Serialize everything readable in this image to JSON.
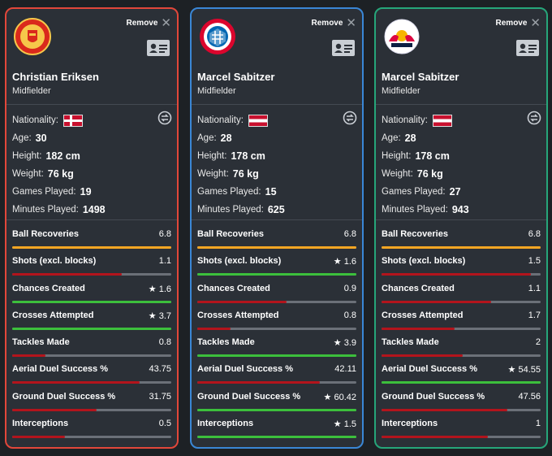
{
  "remove_label": "Remove",
  "players": [
    {
      "name": "Christian Eriksen",
      "position": "Midfielder",
      "club_logo": "manchester-united-crest",
      "accent": "#e2473a",
      "nationality_flag": "denmark-flag",
      "labels": {
        "nationality": "Nationality:",
        "age": "Age:",
        "height": "Height:",
        "weight": "Weight:",
        "games": "Games Played:",
        "minutes": "Minutes Played:"
      },
      "age": "30",
      "height": "182 cm",
      "weight": "76 kg",
      "games_played": "19",
      "minutes_played": "1498",
      "stats": [
        {
          "label": "Ball Recoveries",
          "value": "6.8",
          "fill": 1.0,
          "color": "#f5a623"
        },
        {
          "label": "Shots (excl. blocks)",
          "value": "1.1",
          "fill": 0.69,
          "color": "#b3141c"
        },
        {
          "label": "Chances Created",
          "value": "★ 1.6",
          "fill": 1.0,
          "color": "#3cbf3c"
        },
        {
          "label": "Crosses Attempted",
          "value": "★ 3.7",
          "fill": 1.0,
          "color": "#3cbf3c"
        },
        {
          "label": "Tackles Made",
          "value": "0.8",
          "fill": 0.21,
          "color": "#b3141c"
        },
        {
          "label": "Aerial Duel Success %",
          "value": "43.75",
          "fill": 0.8,
          "color": "#b3141c"
        },
        {
          "label": "Ground Duel Success %",
          "value": "31.75",
          "fill": 0.53,
          "color": "#b3141c"
        },
        {
          "label": "Interceptions",
          "value": "0.5",
          "fill": 0.33,
          "color": "#b3141c"
        }
      ]
    },
    {
      "name": "Marcel Sabitzer",
      "position": "Midfielder",
      "club_logo": "fc-bayern-munchen-crest",
      "accent": "#3a87d6",
      "nationality_flag": "austria-flag",
      "labels": {
        "nationality": "Nationality:",
        "age": "Age:",
        "height": "Height:",
        "weight": "Weight:",
        "games": "Games Played:",
        "minutes": "Minutes Played:"
      },
      "age": "28",
      "height": "178 cm",
      "weight": "76 kg",
      "games_played": "15",
      "minutes_played": "625",
      "stats": [
        {
          "label": "Ball Recoveries",
          "value": "6.8",
          "fill": 1.0,
          "color": "#f5a623"
        },
        {
          "label": "Shots (excl. blocks)",
          "value": "★ 1.6",
          "fill": 1.0,
          "color": "#3cbf3c"
        },
        {
          "label": "Chances Created",
          "value": "0.9",
          "fill": 0.56,
          "color": "#b3141c"
        },
        {
          "label": "Crosses Attempted",
          "value": "0.8",
          "fill": 0.21,
          "color": "#b3141c"
        },
        {
          "label": "Tackles Made",
          "value": "★ 3.9",
          "fill": 1.0,
          "color": "#3cbf3c"
        },
        {
          "label": "Aerial Duel Success %",
          "value": "42.11",
          "fill": 0.77,
          "color": "#b3141c"
        },
        {
          "label": "Ground Duel Success %",
          "value": "★ 60.42",
          "fill": 1.0,
          "color": "#3cbf3c"
        },
        {
          "label": "Interceptions",
          "value": "★ 1.5",
          "fill": 1.0,
          "color": "#3cbf3c"
        }
      ]
    },
    {
      "name": "Marcel Sabitzer",
      "position": "Midfielder",
      "club_logo": "rb-leipzig-crest",
      "accent": "#26a67a",
      "nationality_flag": "austria-flag",
      "labels": {
        "nationality": "Nationality:",
        "age": "Age:",
        "height": "Height:",
        "weight": "Weight:",
        "games": "Games Played:",
        "minutes": "Minutes Played:"
      },
      "age": "28",
      "height": "178 cm",
      "weight": "76 kg",
      "games_played": "27",
      "minutes_played": "943",
      "stats": [
        {
          "label": "Ball Recoveries",
          "value": "6.8",
          "fill": 1.0,
          "color": "#f5a623"
        },
        {
          "label": "Shots (excl. blocks)",
          "value": "1.5",
          "fill": 0.94,
          "color": "#b3141c"
        },
        {
          "label": "Chances Created",
          "value": "1.1",
          "fill": 0.69,
          "color": "#b3141c"
        },
        {
          "label": "Crosses Attempted",
          "value": "1.7",
          "fill": 0.46,
          "color": "#b3141c"
        },
        {
          "label": "Tackles Made",
          "value": "2",
          "fill": 0.51,
          "color": "#b3141c"
        },
        {
          "label": "Aerial Duel Success %",
          "value": "★ 54.55",
          "fill": 1.0,
          "color": "#3cbf3c"
        },
        {
          "label": "Ground Duel Success %",
          "value": "47.56",
          "fill": 0.79,
          "color": "#b3141c"
        },
        {
          "label": "Interceptions",
          "value": "1",
          "fill": 0.67,
          "color": "#b3141c"
        }
      ]
    }
  ]
}
